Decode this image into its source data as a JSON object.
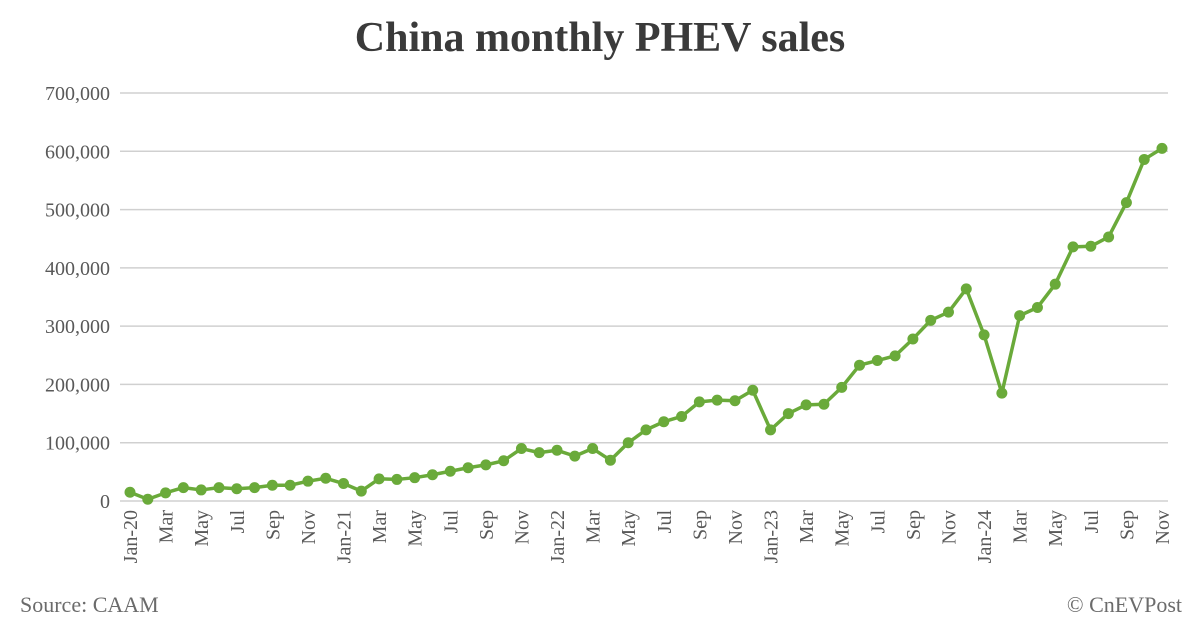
{
  "chart_data": {
    "type": "line",
    "title": "China monthly PHEV sales",
    "xlabel": "",
    "ylabel": "",
    "ylim": [
      0,
      700000
    ],
    "yticks": [
      "0",
      "100,000",
      "200,000",
      "300,000",
      "400,000",
      "500,000",
      "600,000",
      "700,000"
    ],
    "grid": true,
    "legend": "none",
    "color": "#6aaa3a",
    "x_tick_labels": [
      "Jan-20",
      "Mar",
      "May",
      "Jul",
      "Sep",
      "Nov",
      "Jan-21",
      "Mar",
      "May",
      "Jul",
      "Sep",
      "Nov",
      "Jan-22",
      "Mar",
      "May",
      "Jul",
      "Sep",
      "Nov",
      "Jan-23",
      "Mar",
      "May",
      "Jul",
      "Sep",
      "Nov",
      "Jan-24",
      "Mar",
      "May",
      "Jul",
      "Sep",
      "Nov"
    ],
    "x": [
      "Jan-20",
      "Feb-20",
      "Mar-20",
      "Apr-20",
      "May-20",
      "Jun-20",
      "Jul-20",
      "Aug-20",
      "Sep-20",
      "Oct-20",
      "Nov-20",
      "Dec-20",
      "Jan-21",
      "Feb-21",
      "Mar-21",
      "Apr-21",
      "May-21",
      "Jun-21",
      "Jul-21",
      "Aug-21",
      "Sep-21",
      "Oct-21",
      "Nov-21",
      "Dec-21",
      "Jan-22",
      "Feb-22",
      "Mar-22",
      "Apr-22",
      "May-22",
      "Jun-22",
      "Jul-22",
      "Aug-22",
      "Sep-22",
      "Oct-22",
      "Nov-22",
      "Dec-22",
      "Jan-23",
      "Feb-23",
      "Mar-23",
      "Apr-23",
      "May-23",
      "Jun-23",
      "Jul-23",
      "Aug-23",
      "Sep-23",
      "Oct-23",
      "Nov-23",
      "Dec-23",
      "Jan-24",
      "Feb-24",
      "Mar-24",
      "Apr-24",
      "May-24",
      "Jun-24",
      "Jul-24",
      "Aug-24",
      "Sep-24",
      "Oct-24",
      "Nov-24"
    ],
    "values": [
      15000,
      3000,
      14000,
      23000,
      19000,
      23000,
      21000,
      23000,
      27000,
      27000,
      34000,
      39000,
      30000,
      17000,
      38000,
      37000,
      40000,
      45000,
      51000,
      57000,
      62000,
      69000,
      90000,
      83000,
      87000,
      77000,
      90000,
      70000,
      100000,
      122000,
      136000,
      145000,
      170000,
      173000,
      172000,
      190000,
      122000,
      150000,
      165000,
      166000,
      195000,
      233000,
      241000,
      249000,
      278000,
      310000,
      324000,
      364000,
      285000,
      185000,
      318000,
      332000,
      372000,
      436000,
      437000,
      453000,
      512000,
      586000,
      605000
    ]
  },
  "footer": {
    "source": "Source: CAAM",
    "credit": "© CnEVPost"
  }
}
